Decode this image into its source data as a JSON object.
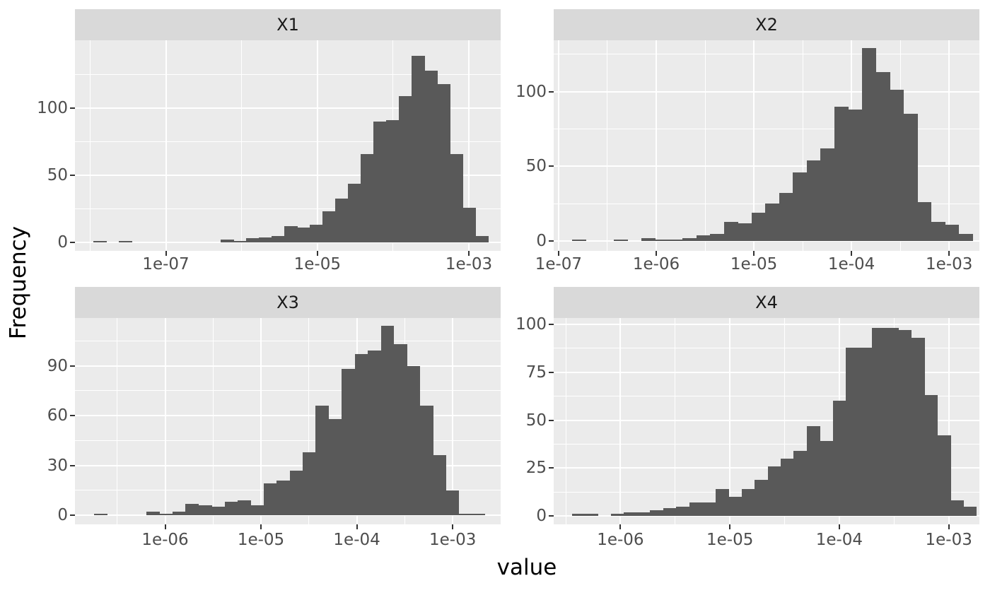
{
  "figure": {
    "x_axis_title": "value",
    "y_axis_title": "Frequency"
  },
  "colors": {
    "background": "#ffffff",
    "panel_background": "#ebebeb",
    "strip_background": "#d9d9d9",
    "strip_text": "#1a1a1a",
    "bar_fill": "#595959",
    "grid_line": "#ffffff",
    "tick_mark": "#333333",
    "tick_text": "#4d4d4d",
    "axis_title_text": "#000000"
  },
  "chart_data": {
    "type": "bar",
    "subtype": "faceted-histogram",
    "x_scale": "log10",
    "xlabel": "value",
    "ylabel": "Frequency",
    "grid": true,
    "legend": false,
    "facets": [
      {
        "label": "X1",
        "x_domain_log10": [
          -8.2,
          -2.58
        ],
        "bin_start_log10": -7.954,
        "bin_width_log10": 0.168,
        "counts": [
          1,
          0,
          1,
          0,
          0,
          0,
          0,
          0,
          0,
          0,
          2,
          1,
          3,
          4,
          5,
          12,
          11,
          13,
          23,
          33,
          44,
          66,
          90,
          91,
          109,
          139,
          128,
          118,
          66,
          26,
          5
        ],
        "x_major_breaks": [
          {
            "log10": -7,
            "label": "1e-07"
          },
          {
            "log10": -5,
            "label": "1e-05"
          },
          {
            "log10": -3,
            "label": "1e-03"
          }
        ],
        "x_minor_breaks_log10": [
          -8,
          -6,
          -4
        ],
        "y_major_breaks": [
          {
            "value": 0,
            "label": "0"
          },
          {
            "value": 50,
            "label": "50"
          },
          {
            "value": 100,
            "label": "100"
          }
        ],
        "y_minor_breaks": [
          25,
          75,
          125
        ],
        "ylim": [
          -6.3,
          150.8
        ]
      },
      {
        "label": "X2",
        "x_domain_log10": [
          -7.05,
          -2.69
        ],
        "bin_start_log10": -6.862,
        "bin_width_log10": 0.1414,
        "counts": [
          1,
          0,
          0,
          1,
          0,
          2,
          1,
          1,
          2,
          4,
          5,
          13,
          12,
          19,
          25,
          32,
          46,
          54,
          62,
          90,
          88,
          129,
          113,
          101,
          85,
          26,
          13,
          11,
          5
        ],
        "x_major_breaks": [
          {
            "log10": -7,
            "label": "1e-07"
          },
          {
            "log10": -6,
            "label": "1e-06"
          },
          {
            "log10": -5,
            "label": "1e-05"
          },
          {
            "log10": -4,
            "label": "1e-04"
          },
          {
            "log10": -3,
            "label": "1e-03"
          }
        ],
        "x_minor_breaks_log10": [
          -6.5,
          -5.5,
          -4.5,
          -3.5
        ],
        "y_major_breaks": [
          {
            "value": 0,
            "label": "0"
          },
          {
            "value": 50,
            "label": "50"
          },
          {
            "value": 100,
            "label": "100"
          }
        ],
        "y_minor_breaks": [
          25,
          75,
          125
        ],
        "ylim": [
          -6.6,
          134.3
        ]
      },
      {
        "label": "X3",
        "x_domain_log10": [
          -6.94,
          -2.5
        ],
        "bin_start_log10": -6.738,
        "bin_width_log10": 0.1358,
        "counts": [
          1,
          0,
          0,
          0,
          2,
          1,
          2,
          7,
          6,
          5,
          8,
          9,
          6,
          19,
          21,
          27,
          38,
          66,
          58,
          88,
          97,
          99,
          114,
          103,
          90,
          66,
          36,
          15,
          1,
          1
        ],
        "x_major_breaks": [
          {
            "log10": -6,
            "label": "1e-06"
          },
          {
            "log10": -5,
            "label": "1e-05"
          },
          {
            "log10": -4,
            "label": "1e-04"
          },
          {
            "log10": -3,
            "label": "1e-03"
          }
        ],
        "x_minor_breaks_log10": [
          -6.5,
          -5.5,
          -4.5,
          -3.5
        ],
        "y_major_breaks": [
          {
            "value": 0,
            "label": "0"
          },
          {
            "value": 30,
            "label": "30"
          },
          {
            "value": 60,
            "label": "60"
          },
          {
            "value": 90,
            "label": "90"
          }
        ],
        "y_minor_breaks": [
          15,
          45,
          75,
          105
        ],
        "ylim": [
          -5.5,
          118.7
        ]
      },
      {
        "label": "X4",
        "x_domain_log10": [
          -6.61,
          -2.72
        ],
        "bin_start_log10": -6.445,
        "bin_width_log10": 0.1193,
        "counts": [
          1,
          1,
          0,
          1,
          2,
          2,
          3,
          4,
          5,
          7,
          7,
          14,
          10,
          14,
          19,
          26,
          30,
          34,
          47,
          39,
          60,
          88,
          88,
          98,
          98,
          97,
          93,
          63,
          42,
          8,
          5
        ],
        "x_major_breaks": [
          {
            "log10": -6,
            "label": "1e-06"
          },
          {
            "log10": -5,
            "label": "1e-05"
          },
          {
            "log10": -4,
            "label": "1e-04"
          },
          {
            "log10": -3,
            "label": "1e-03"
          }
        ],
        "x_minor_breaks_log10": [
          -6.5,
          -5.5,
          -4.5,
          -3.5
        ],
        "y_major_breaks": [
          {
            "value": 0,
            "label": "0"
          },
          {
            "value": 25,
            "label": "25"
          },
          {
            "value": 50,
            "label": "50"
          },
          {
            "value": 75,
            "label": "75"
          },
          {
            "value": 100,
            "label": "100"
          }
        ],
        "y_minor_breaks": [
          12.5,
          37.5,
          62.5,
          87.5
        ],
        "ylim": [
          -4.4,
          103.3
        ]
      }
    ]
  }
}
